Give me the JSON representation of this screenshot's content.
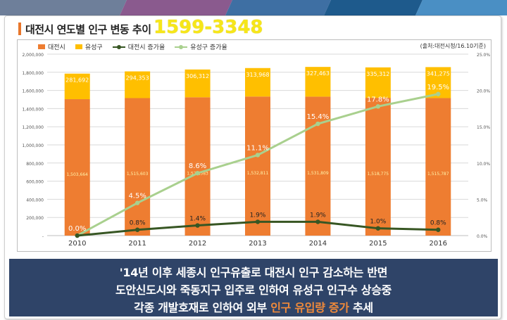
{
  "title": "대전시 연도별 인구 변동 추이",
  "phone": "1599-3348",
  "source": "(출처:대전시청/16.10기준)",
  "banner": {
    "line1": "'14년 이후 세종시 인구유출로 대전시 인구 감소하는 반면",
    "line2": "도안신도시와 죽동지구 입주로 인하여 유성구 인구수 상승중",
    "line3_pre": "각종 개발호재로 인하여 외부 ",
    "line3_hl": "인구 유입량 증가",
    "line3_post": " 추세"
  },
  "colors": {
    "daejeon": "#ee7d31",
    "yuseong": "#ffbf00",
    "daejeon_rate": "#375623",
    "yuseong_rate": "#a9d08e"
  },
  "chart_data": {
    "type": "bar",
    "categories": [
      "2010",
      "2011",
      "2012",
      "2013",
      "2014",
      "2015",
      "2016"
    ],
    "series": [
      {
        "name": "대전시",
        "kind": "stacked-bar",
        "values": [
          1503664,
          1515603,
          1524583,
          1532811,
          1531809,
          1518775,
          1515787
        ],
        "labels": [
          "1,503,664",
          "1,515,603",
          "1,524,583",
          "1,532,811",
          "1,531,809",
          "1,518,775",
          "1,515,787"
        ]
      },
      {
        "name": "유성구",
        "kind": "stacked-bar",
        "values": [
          281692,
          294353,
          306312,
          313968,
          327463,
          335312,
          341275
        ],
        "labels": [
          "281,692",
          "294,353",
          "306,312",
          "313,968",
          "327,463",
          "335,312",
          "341,275"
        ]
      },
      {
        "name": "대전시 증가율",
        "kind": "line",
        "axis": "right",
        "values": [
          0.0,
          0.8,
          1.4,
          1.9,
          1.9,
          1.0,
          0.8
        ],
        "labels": [
          "",
          "0.8%",
          "1.4%",
          "1.9%",
          "1.9%",
          "1.0%",
          "0.8%"
        ]
      },
      {
        "name": "유성구 증가율",
        "kind": "line",
        "axis": "right",
        "values": [
          0.0,
          4.5,
          8.6,
          11.1,
          15.4,
          17.8,
          19.5
        ],
        "labels": [
          "0.0%",
          "4.5%",
          "8.6%",
          "11.1%",
          "15.4%",
          "17.8%",
          "19.5%"
        ]
      }
    ],
    "left_axis": {
      "min": 0,
      "max": 2000000,
      "step": 200000,
      "ticks": [
        "-",
        "200,000",
        "400,000",
        "600,000",
        "800,000",
        "1,000,000",
        "1,200,000",
        "1,400,000",
        "1,600,000",
        "1,800,000",
        "2,000,000"
      ]
    },
    "right_axis": {
      "min": 0,
      "max": 25,
      "step": 5,
      "ticks": [
        "0.0%",
        "5.0%",
        "10.0%",
        "15.0%",
        "20.0%",
        "25.0%"
      ]
    },
    "grid": true,
    "legend_position": "top-left"
  }
}
